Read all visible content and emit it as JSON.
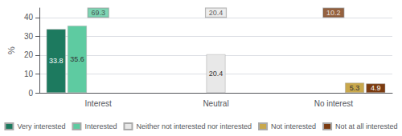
{
  "chart_data": {
    "type": "bar",
    "categories": [
      "Interest",
      "Neutral",
      "No interest"
    ],
    "series": [
      {
        "name": "Very interested",
        "color": "#1d7a5f",
        "values": [
          33.8,
          null,
          null
        ]
      },
      {
        "name": "Interested",
        "color": "#5ecba1",
        "values": [
          35.6,
          null,
          null
        ]
      },
      {
        "name": "Neither not interested nor interested",
        "color": "#e8e8e8",
        "values": [
          null,
          20.4,
          null
        ]
      },
      {
        "name": "Not interested",
        "color": "#c9a84c",
        "values": [
          null,
          null,
          5.3
        ]
      },
      {
        "name": "Not at all interested",
        "color": "#7b3b10",
        "values": [
          null,
          null,
          4.9
        ]
      }
    ],
    "annotations": [
      {
        "text": "69.3",
        "x": "Interest",
        "y": 42.5,
        "color": "#5ecba1"
      },
      {
        "text": "20.4",
        "x": "Neutral",
        "y": 42.5,
        "color": "#e8e8e8"
      },
      {
        "text": "10.2",
        "x": "No interest",
        "y": 42.5,
        "color": "#7b3b10"
      }
    ],
    "ylabel": "%",
    "ylim": [
      0,
      45
    ],
    "yticks": [
      0,
      10,
      20,
      30,
      40
    ],
    "grid": true,
    "data_labels": true,
    "legend": "bottom"
  }
}
